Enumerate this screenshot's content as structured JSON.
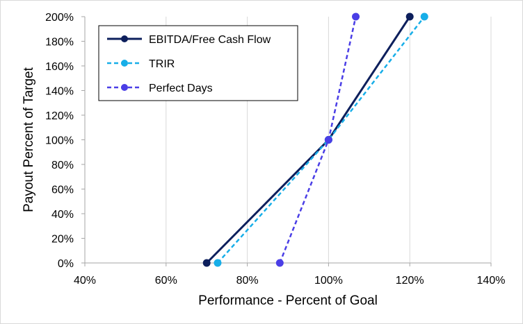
{
  "chart_data": {
    "type": "line",
    "xlabel": "Performance - Percent of Goal",
    "ylabel": "Payout Percent of Target",
    "xlim": [
      40,
      140
    ],
    "ylim": [
      0,
      200
    ],
    "x_ticks": [
      "40%",
      "60%",
      "80%",
      "100%",
      "120%",
      "140%"
    ],
    "y_ticks": [
      "0%",
      "20%",
      "40%",
      "60%",
      "80%",
      "100%",
      "120%",
      "140%",
      "160%",
      "180%",
      "200%"
    ],
    "x_tick_values": [
      40,
      60,
      80,
      100,
      120,
      140
    ],
    "y_tick_values": [
      0,
      20,
      40,
      60,
      80,
      100,
      120,
      140,
      160,
      180,
      200
    ],
    "grid": {
      "vertical": true,
      "horizontal": false
    },
    "legend_position": "top-left",
    "series": [
      {
        "name": "EBITDA/Free Cash Flow",
        "color": "#0d1f5c",
        "dashed": false,
        "x": [
          70,
          100,
          120
        ],
        "y": [
          0,
          100,
          200
        ]
      },
      {
        "name": "TRIR",
        "color": "#17aee8",
        "dashed": true,
        "x": [
          72.7,
          100,
          123.6
        ],
        "y": [
          0,
          100,
          200
        ]
      },
      {
        "name": "Perfect Days",
        "color": "#4a3ee6",
        "dashed": true,
        "x": [
          88,
          100,
          106.7
        ],
        "y": [
          0,
          100,
          200
        ]
      }
    ]
  }
}
